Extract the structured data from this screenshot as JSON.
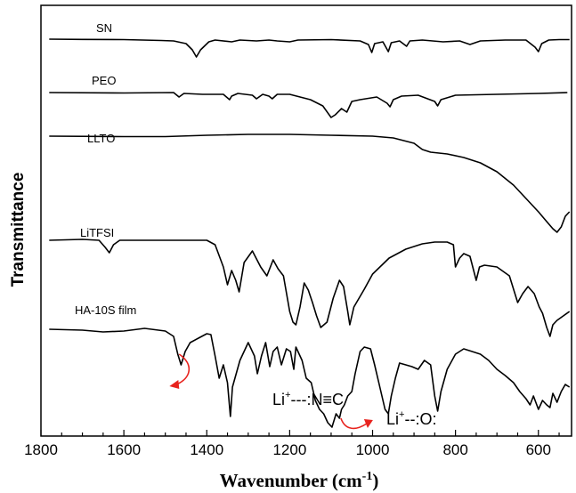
{
  "chart_data": {
    "type": "line",
    "xlabel_main": "Wavenumber (cm",
    "xlabel_sup": "-1",
    "xlabel_end": ")",
    "ylabel": "Transmittance",
    "xlim": [
      1800,
      520
    ],
    "x_ticks": [
      1800,
      1600,
      1400,
      1200,
      1000,
      800,
      600
    ],
    "grid": false,
    "annotations": [
      {
        "base": "Li",
        "sup": "+",
        "rest": "---:N",
        "triple_bond": "≡",
        "end": "C",
        "points_to_x": 1460
      },
      {
        "base": "Li",
        "sup": "+",
        "rest": "--:O:",
        "points_to_x": 1070
      }
    ],
    "series": [
      {
        "name": "SN",
        "points": [
          [
            1780,
            0
          ],
          [
            1700,
            0.3
          ],
          [
            1600,
            0.5
          ],
          [
            1510,
            1.5
          ],
          [
            1480,
            2
          ],
          [
            1450,
            5
          ],
          [
            1435,
            12
          ],
          [
            1425,
            20
          ],
          [
            1415,
            12
          ],
          [
            1395,
            3
          ],
          [
            1380,
            1
          ],
          [
            1340,
            3
          ],
          [
            1320,
            1
          ],
          [
            1280,
            2
          ],
          [
            1250,
            1
          ],
          [
            1230,
            2
          ],
          [
            1200,
            3
          ],
          [
            1180,
            1
          ],
          [
            1100,
            0.5
          ],
          [
            1030,
            2
          ],
          [
            1010,
            6
          ],
          [
            1002,
            15
          ],
          [
            995,
            5
          ],
          [
            975,
            3
          ],
          [
            962,
            14
          ],
          [
            955,
            4
          ],
          [
            935,
            2
          ],
          [
            918,
            8
          ],
          [
            910,
            2
          ],
          [
            880,
            1
          ],
          [
            830,
            3
          ],
          [
            790,
            2
          ],
          [
            765,
            6
          ],
          [
            740,
            2
          ],
          [
            680,
            1
          ],
          [
            630,
            1
          ],
          [
            608,
            9
          ],
          [
            600,
            14
          ],
          [
            592,
            5
          ],
          [
            575,
            1
          ],
          [
            550,
            0.5
          ],
          [
            525,
            0.5
          ]
        ]
      },
      {
        "name": "PEO",
        "points": [
          [
            1780,
            0
          ],
          [
            1600,
            0.5
          ],
          [
            1480,
            0
          ],
          [
            1467,
            5
          ],
          [
            1455,
            1
          ],
          [
            1410,
            2
          ],
          [
            1360,
            2
          ],
          [
            1345,
            8
          ],
          [
            1340,
            4
          ],
          [
            1325,
            1
          ],
          [
            1290,
            3
          ],
          [
            1280,
            7
          ],
          [
            1265,
            2
          ],
          [
            1250,
            4
          ],
          [
            1242,
            7
          ],
          [
            1230,
            2
          ],
          [
            1200,
            2
          ],
          [
            1150,
            8
          ],
          [
            1120,
            15
          ],
          [
            1100,
            28
          ],
          [
            1090,
            25
          ],
          [
            1075,
            18
          ],
          [
            1062,
            22
          ],
          [
            1050,
            10
          ],
          [
            1030,
            8
          ],
          [
            990,
            5
          ],
          [
            965,
            12
          ],
          [
            958,
            16
          ],
          [
            950,
            8
          ],
          [
            930,
            4
          ],
          [
            890,
            3
          ],
          [
            850,
            10
          ],
          [
            843,
            15
          ],
          [
            835,
            8
          ],
          [
            800,
            3
          ],
          [
            700,
            2
          ],
          [
            600,
            1
          ],
          [
            530,
            0
          ]
        ]
      },
      {
        "name": "LLTO",
        "points": [
          [
            1780,
            0
          ],
          [
            1600,
            0.5
          ],
          [
            1500,
            0.5
          ],
          [
            1400,
            -1
          ],
          [
            1300,
            -2
          ],
          [
            1200,
            -2
          ],
          [
            1100,
            -1
          ],
          [
            1000,
            0
          ],
          [
            950,
            2
          ],
          [
            900,
            8
          ],
          [
            880,
            15
          ],
          [
            860,
            18
          ],
          [
            820,
            20
          ],
          [
            780,
            24
          ],
          [
            740,
            30
          ],
          [
            700,
            40
          ],
          [
            660,
            55
          ],
          [
            630,
            70
          ],
          [
            600,
            85
          ],
          [
            580,
            96
          ],
          [
            565,
            104
          ],
          [
            555,
            108
          ],
          [
            545,
            102
          ],
          [
            535,
            90
          ],
          [
            525,
            85
          ]
        ]
      },
      {
        "name": "LiTFSI",
        "points": [
          [
            1780,
            0
          ],
          [
            1700,
            -1
          ],
          [
            1660,
            0
          ],
          [
            1645,
            8
          ],
          [
            1635,
            14
          ],
          [
            1625,
            5
          ],
          [
            1610,
            0
          ],
          [
            1400,
            0
          ],
          [
            1380,
            5
          ],
          [
            1360,
            30
          ],
          [
            1350,
            50
          ],
          [
            1340,
            34
          ],
          [
            1330,
            45
          ],
          [
            1322,
            58
          ],
          [
            1310,
            25
          ],
          [
            1290,
            12
          ],
          [
            1270,
            30
          ],
          [
            1255,
            40
          ],
          [
            1240,
            22
          ],
          [
            1228,
            32
          ],
          [
            1215,
            40
          ],
          [
            1200,
            80
          ],
          [
            1192,
            92
          ],
          [
            1185,
            95
          ],
          [
            1175,
            75
          ],
          [
            1165,
            48
          ],
          [
            1155,
            56
          ],
          [
            1145,
            70
          ],
          [
            1135,
            85
          ],
          [
            1125,
            98
          ],
          [
            1110,
            92
          ],
          [
            1095,
            65
          ],
          [
            1080,
            45
          ],
          [
            1070,
            52
          ],
          [
            1060,
            80
          ],
          [
            1055,
            95
          ],
          [
            1045,
            75
          ],
          [
            1020,
            55
          ],
          [
            1000,
            38
          ],
          [
            960,
            20
          ],
          [
            920,
            10
          ],
          [
            880,
            4
          ],
          [
            850,
            2
          ],
          [
            820,
            2
          ],
          [
            805,
            5
          ],
          [
            800,
            30
          ],
          [
            790,
            20
          ],
          [
            780,
            15
          ],
          [
            765,
            18
          ],
          [
            750,
            45
          ],
          [
            742,
            30
          ],
          [
            730,
            28
          ],
          [
            700,
            30
          ],
          [
            670,
            40
          ],
          [
            650,
            70
          ],
          [
            638,
            60
          ],
          [
            625,
            52
          ],
          [
            610,
            60
          ],
          [
            598,
            75
          ],
          [
            590,
            82
          ],
          [
            580,
            98
          ],
          [
            572,
            108
          ],
          [
            565,
            95
          ],
          [
            555,
            90
          ],
          [
            540,
            85
          ],
          [
            525,
            80
          ]
        ]
      },
      {
        "name": "HA-10S film",
        "points": [
          [
            1780,
            0
          ],
          [
            1700,
            1
          ],
          [
            1650,
            3
          ],
          [
            1600,
            2
          ],
          [
            1550,
            -1
          ],
          [
            1500,
            2
          ],
          [
            1480,
            8
          ],
          [
            1470,
            28
          ],
          [
            1462,
            40
          ],
          [
            1452,
            25
          ],
          [
            1440,
            15
          ],
          [
            1420,
            10
          ],
          [
            1400,
            5
          ],
          [
            1390,
            6
          ],
          [
            1380,
            30
          ],
          [
            1370,
            55
          ],
          [
            1360,
            40
          ],
          [
            1350,
            60
          ],
          [
            1343,
            98
          ],
          [
            1338,
            65
          ],
          [
            1320,
            35
          ],
          [
            1300,
            15
          ],
          [
            1285,
            30
          ],
          [
            1278,
            50
          ],
          [
            1268,
            30
          ],
          [
            1258,
            15
          ],
          [
            1248,
            42
          ],
          [
            1240,
            25
          ],
          [
            1230,
            20
          ],
          [
            1220,
            40
          ],
          [
            1208,
            22
          ],
          [
            1198,
            25
          ],
          [
            1190,
            45
          ],
          [
            1185,
            20
          ],
          [
            1170,
            35
          ],
          [
            1160,
            55
          ],
          [
            1148,
            60
          ],
          [
            1138,
            80
          ],
          [
            1128,
            90
          ],
          [
            1118,
            95
          ],
          [
            1108,
            105
          ],
          [
            1098,
            110
          ],
          [
            1088,
            95
          ],
          [
            1080,
            100
          ],
          [
            1075,
            90
          ],
          [
            1068,
            85
          ],
          [
            1060,
            75
          ],
          [
            1050,
            70
          ],
          [
            1042,
            50
          ],
          [
            1030,
            25
          ],
          [
            1020,
            20
          ],
          [
            1005,
            22
          ],
          [
            995,
            40
          ],
          [
            985,
            60
          ],
          [
            970,
            90
          ],
          [
            962,
            95
          ],
          [
            955,
            75
          ],
          [
            945,
            55
          ],
          [
            935,
            38
          ],
          [
            920,
            40
          ],
          [
            905,
            42
          ],
          [
            890,
            45
          ],
          [
            875,
            35
          ],
          [
            860,
            40
          ],
          [
            850,
            75
          ],
          [
            843,
            92
          ],
          [
            835,
            70
          ],
          [
            820,
            45
          ],
          [
            800,
            28
          ],
          [
            780,
            22
          ],
          [
            760,
            25
          ],
          [
            740,
            28
          ],
          [
            720,
            35
          ],
          [
            700,
            45
          ],
          [
            680,
            52
          ],
          [
            660,
            60
          ],
          [
            645,
            70
          ],
          [
            630,
            78
          ],
          [
            620,
            85
          ],
          [
            612,
            75
          ],
          [
            600,
            90
          ],
          [
            590,
            80
          ],
          [
            580,
            85
          ],
          [
            572,
            88
          ],
          [
            565,
            72
          ],
          [
            555,
            82
          ],
          [
            545,
            70
          ],
          [
            535,
            62
          ],
          [
            525,
            65
          ]
        ]
      }
    ]
  }
}
